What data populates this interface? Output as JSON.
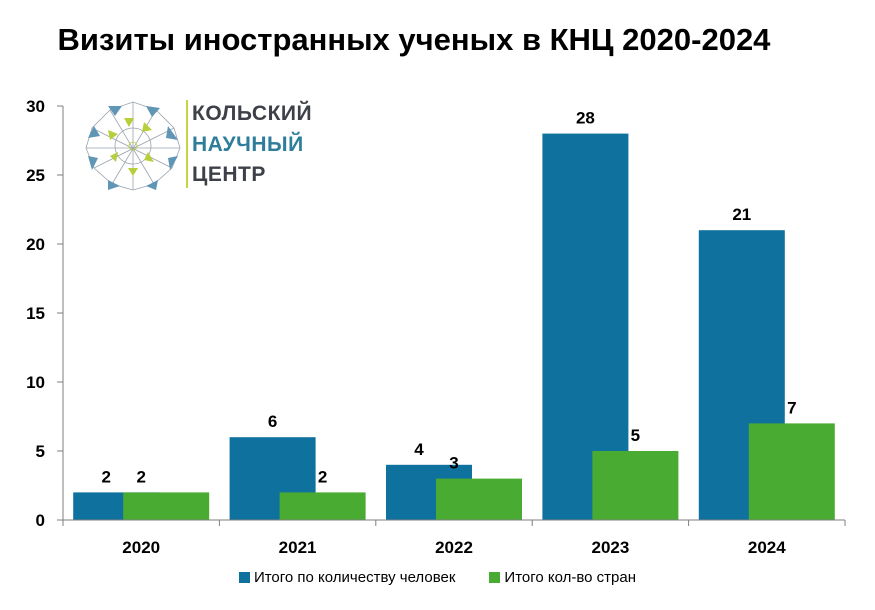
{
  "logo": {
    "line1": "КОЛЬСКИЙ",
    "line2": "НАУЧНЫЙ",
    "line3": "ЦЕНТР",
    "colors": {
      "line1": "#3d4048",
      "line2": "#2e7d9b",
      "line3": "#3d4048",
      "triangle_blue": "#5f95b5",
      "triangle_green": "#b6cf3a"
    }
  },
  "colors": {
    "series1": "#0f719d",
    "series2": "#4aab32",
    "axis": "#7f7f7f"
  },
  "chart_data": {
    "type": "bar",
    "title": "Визиты иностранных ученых в КНЦ 2020-2024",
    "xlabel": "",
    "ylabel": "",
    "categories": [
      "2020",
      "2021",
      "2022",
      "2023",
      "2024"
    ],
    "series": [
      {
        "name": "Итого по количеству человек",
        "values": [
          2,
          6,
          4,
          28,
          21
        ]
      },
      {
        "name": "Итого кол-во стран",
        "values": [
          2,
          2,
          3,
          5,
          7
        ]
      }
    ],
    "ylim": [
      0,
      30
    ],
    "yticks": [
      0,
      5,
      10,
      15,
      20,
      25,
      30
    ],
    "grid": false,
    "legend": "bottom",
    "data_labels": true
  }
}
